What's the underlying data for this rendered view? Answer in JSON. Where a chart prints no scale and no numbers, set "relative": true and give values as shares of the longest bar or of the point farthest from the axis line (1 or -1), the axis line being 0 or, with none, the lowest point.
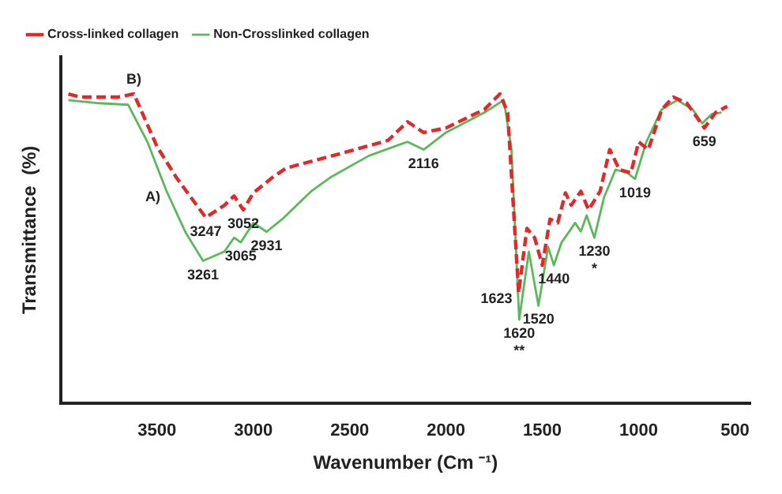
{
  "chart_data": {
    "type": "line",
    "relative": true,
    "xlabel": "Wavenumber (Cm ⁻¹)",
    "ylabel": "Transmittance  (%)",
    "xlim": [
      4000,
      420
    ],
    "xticks": [
      3500,
      3000,
      2500,
      2000,
      1500,
      1000,
      500
    ],
    "legend": "top left",
    "marker": "none",
    "grid": false,
    "series": [
      {
        "name": "Cross-linked collagen",
        "color": "#e02a2a",
        "line_style": "dashed",
        "x": [
          3960,
          3900,
          3700,
          3620,
          3500,
          3400,
          3247,
          3150,
          3100,
          3052,
          3000,
          2900,
          2830,
          2500,
          2300,
          2200,
          2116,
          2000,
          1800,
          1720,
          1680,
          1623,
          1580,
          1540,
          1500,
          1460,
          1420,
          1380,
          1350,
          1300,
          1260,
          1200,
          1150,
          1100,
          1040,
          1000,
          950,
          880,
          820,
          750,
          659,
          600,
          540
        ],
        "values": [
          1.0,
          0.99,
          0.99,
          1.0,
          0.83,
          0.73,
          0.6,
          0.64,
          0.67,
          0.625,
          0.68,
          0.73,
          0.76,
          0.815,
          0.85,
          0.91,
          0.875,
          0.89,
          0.95,
          1.0,
          0.94,
          0.357,
          0.565,
          0.535,
          0.446,
          0.595,
          0.583,
          0.68,
          0.64,
          0.685,
          0.625,
          0.685,
          0.82,
          0.755,
          0.745,
          0.845,
          0.82,
          0.95,
          0.99,
          0.97,
          0.89,
          0.94,
          0.96
        ]
      },
      {
        "name": "Non-Crosslinked collagen",
        "color": "#5cb85c",
        "line_style": "solid",
        "x": [
          3960,
          3800,
          3650,
          3550,
          3450,
          3350,
          3261,
          3150,
          3100,
          3065,
          3000,
          2931,
          2850,
          2700,
          2600,
          2400,
          2200,
          2116,
          2000,
          1800,
          1700,
          1660,
          1620,
          1570,
          1520,
          1470,
          1440,
          1400,
          1360,
          1330,
          1300,
          1270,
          1230,
          1180,
          1120,
          1060,
          1019,
          960,
          880,
          800,
          720,
          670,
          620,
          570
        ],
        "values": [
          0.98,
          0.97,
          0.965,
          0.845,
          0.685,
          0.55,
          0.46,
          0.49,
          0.535,
          0.52,
          0.583,
          0.554,
          0.595,
          0.685,
          0.73,
          0.8,
          0.845,
          0.82,
          0.875,
          0.94,
          0.98,
          0.82,
          0.27,
          0.49,
          0.315,
          0.505,
          0.446,
          0.52,
          0.555,
          0.583,
          0.555,
          0.607,
          0.535,
          0.665,
          0.755,
          0.745,
          0.725,
          0.845,
          0.95,
          0.98,
          0.95,
          0.905,
          0.935,
          0.94
        ]
      }
    ],
    "annotations": [
      {
        "text": "B)",
        "x": 3620,
        "y": 1.0
      },
      {
        "text": "A)",
        "x": 3450,
        "y": 0.685
      },
      {
        "text": "3247",
        "x": 3247,
        "y": 0.6
      },
      {
        "text": "3052",
        "x": 3052,
        "y": 0.625
      },
      {
        "text": "3261",
        "x": 3261,
        "y": 0.46
      },
      {
        "text": "3065",
        "x": 3065,
        "y": 0.52
      },
      {
        "text": "2931",
        "x": 2931,
        "y": 0.554
      },
      {
        "text": "2116",
        "x": 2116,
        "y": 0.82
      },
      {
        "text": "1623",
        "x": 1623,
        "y": 0.357
      },
      {
        "text": "1620",
        "x": 1620,
        "y": 0.27
      },
      {
        "text": "**",
        "x": 1620,
        "y": 0.27
      },
      {
        "text": "1520",
        "x": 1520,
        "y": 0.315
      },
      {
        "text": "1440",
        "x": 1440,
        "y": 0.446
      },
      {
        "text": "1230",
        "x": 1230,
        "y": 0.535
      },
      {
        "text": "*",
        "x": 1230,
        "y": 0.535
      },
      {
        "text": "1019",
        "x": 1019,
        "y": 0.725
      },
      {
        "text": "659",
        "x": 659,
        "y": 0.89
      }
    ]
  }
}
